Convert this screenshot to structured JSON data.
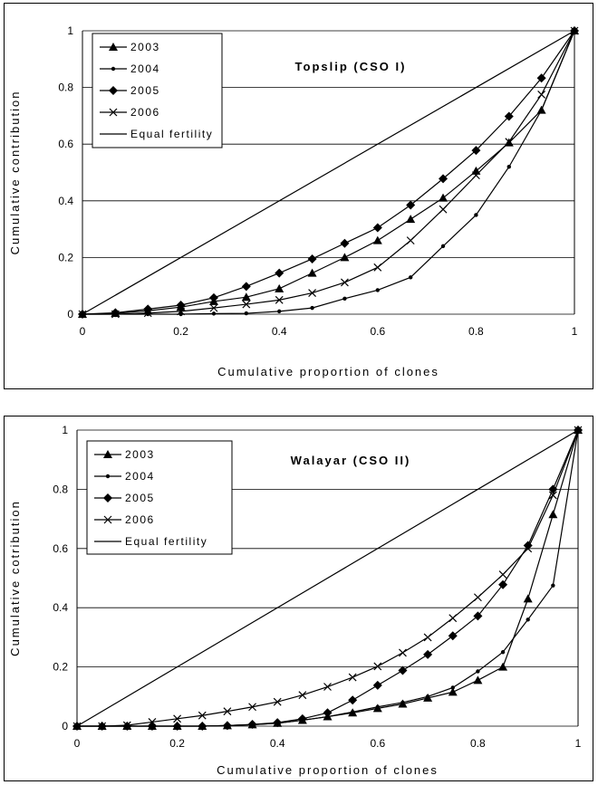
{
  "chart_data": [
    {
      "type": "line",
      "title": "Topslip (CSO I)",
      "xlabel": "Cumulative proportion of clones",
      "ylabel": "Cumulative contribution",
      "xlim": [
        0,
        1
      ],
      "ylim": [
        0,
        1
      ],
      "xticks": [
        "0",
        "0.2",
        "0.4",
        "0.6",
        "0.8",
        "1"
      ],
      "yticks": [
        "0",
        "0.2",
        "0.4",
        "0.6",
        "0.8",
        "1"
      ],
      "grid": "horizontal",
      "legend_position": "top-left",
      "series": [
        {
          "name": "2003",
          "marker": "triangle",
          "x": [
            0,
            0.067,
            0.133,
            0.2,
            0.267,
            0.333,
            0.4,
            0.467,
            0.533,
            0.6,
            0.667,
            0.733,
            0.8,
            0.867,
            0.933,
            1
          ],
          "y": [
            0,
            0.003,
            0.012,
            0.025,
            0.045,
            0.06,
            0.09,
            0.145,
            0.2,
            0.26,
            0.335,
            0.41,
            0.505,
            0.605,
            0.72,
            1
          ]
        },
        {
          "name": "2004",
          "marker": "dot",
          "x": [
            0,
            0.067,
            0.133,
            0.2,
            0.267,
            0.333,
            0.4,
            0.467,
            0.533,
            0.6,
            0.667,
            0.733,
            0.8,
            0.867,
            0.933,
            1
          ],
          "y": [
            0,
            0,
            0,
            0,
            0.002,
            0.003,
            0.01,
            0.022,
            0.055,
            0.085,
            0.13,
            0.24,
            0.35,
            0.52,
            0.72,
            1
          ]
        },
        {
          "name": "2005",
          "marker": "diamond",
          "x": [
            0,
            0.067,
            0.133,
            0.2,
            0.267,
            0.333,
            0.4,
            0.467,
            0.533,
            0.6,
            0.667,
            0.733,
            0.8,
            0.867,
            0.933,
            1
          ],
          "y": [
            0,
            0.005,
            0.018,
            0.032,
            0.058,
            0.098,
            0.145,
            0.195,
            0.25,
            0.305,
            0.385,
            0.478,
            0.578,
            0.698,
            0.833,
            1
          ]
        },
        {
          "name": "2006",
          "marker": "x",
          "x": [
            0,
            0.067,
            0.133,
            0.2,
            0.267,
            0.333,
            0.4,
            0.467,
            0.533,
            0.6,
            0.667,
            0.733,
            0.8,
            0.867,
            0.933,
            1
          ],
          "y": [
            0,
            0,
            0.004,
            0.01,
            0.022,
            0.035,
            0.05,
            0.075,
            0.112,
            0.165,
            0.26,
            0.37,
            0.49,
            0.608,
            0.775,
            1
          ]
        },
        {
          "name": "Equal fertility",
          "marker": "none",
          "x": [
            0,
            1
          ],
          "y": [
            0,
            1
          ]
        }
      ]
    },
    {
      "type": "line",
      "title": "Walayar (CSO II)",
      "xlabel": "Cumulative proportion of clones",
      "ylabel": "Cumulative cotribution",
      "xlim": [
        0,
        1
      ],
      "ylim": [
        0,
        1
      ],
      "xticks": [
        "0",
        "0.2",
        "0.4",
        "0.6",
        "0.8",
        "1"
      ],
      "yticks": [
        "0",
        "0.2",
        "0.4",
        "0.6",
        "0.8",
        "1"
      ],
      "grid": "horizontal",
      "legend_position": "top-left",
      "series": [
        {
          "name": "2003",
          "marker": "triangle",
          "x": [
            0,
            0.05,
            0.1,
            0.15,
            0.2,
            0.25,
            0.3,
            0.35,
            0.4,
            0.45,
            0.5,
            0.55,
            0.6,
            0.65,
            0.7,
            0.75,
            0.8,
            0.85,
            0.9,
            0.95,
            1
          ],
          "y": [
            0,
            0,
            0,
            0,
            0,
            0,
            0.002,
            0.005,
            0.01,
            0.02,
            0.032,
            0.045,
            0.06,
            0.075,
            0.095,
            0.115,
            0.155,
            0.2,
            0.43,
            0.715,
            1
          ]
        },
        {
          "name": "2004",
          "marker": "dot",
          "x": [
            0,
            0.05,
            0.1,
            0.15,
            0.2,
            0.25,
            0.3,
            0.35,
            0.4,
            0.45,
            0.5,
            0.55,
            0.6,
            0.65,
            0.7,
            0.75,
            0.8,
            0.85,
            0.9,
            0.95,
            1
          ],
          "y": [
            0,
            0,
            0,
            0,
            0,
            0,
            0.002,
            0.005,
            0.01,
            0.02,
            0.032,
            0.048,
            0.065,
            0.08,
            0.1,
            0.13,
            0.185,
            0.25,
            0.36,
            0.475,
            1
          ]
        },
        {
          "name": "2005",
          "marker": "diamond",
          "x": [
            0,
            0.05,
            0.1,
            0.15,
            0.2,
            0.25,
            0.3,
            0.35,
            0.4,
            0.45,
            0.5,
            0.55,
            0.6,
            0.65,
            0.7,
            0.75,
            0.8,
            0.85,
            0.9,
            0.95,
            1
          ],
          "y": [
            0,
            0,
            0,
            0,
            0,
            0,
            0.002,
            0.006,
            0.012,
            0.025,
            0.045,
            0.088,
            0.138,
            0.188,
            0.242,
            0.305,
            0.372,
            0.478,
            0.61,
            0.8,
            1
          ]
        },
        {
          "name": "2006",
          "marker": "x",
          "x": [
            0,
            0.05,
            0.1,
            0.15,
            0.2,
            0.25,
            0.3,
            0.35,
            0.4,
            0.45,
            0.5,
            0.55,
            0.6,
            0.65,
            0.7,
            0.75,
            0.8,
            0.85,
            0.9,
            0.95,
            1
          ],
          "y": [
            0,
            0,
            0.003,
            0.014,
            0.025,
            0.036,
            0.05,
            0.065,
            0.082,
            0.105,
            0.133,
            0.165,
            0.202,
            0.248,
            0.3,
            0.365,
            0.435,
            0.512,
            0.6,
            0.78,
            1
          ]
        },
        {
          "name": "Equal fertility",
          "marker": "none",
          "x": [
            0,
            1
          ],
          "y": [
            0,
            1
          ]
        }
      ]
    }
  ]
}
